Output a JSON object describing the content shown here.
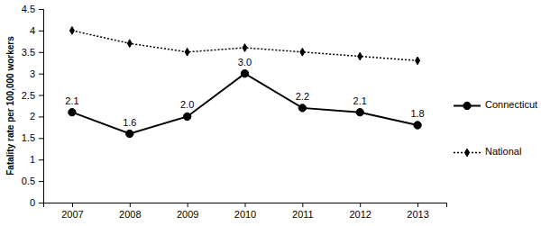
{
  "chart_data": {
    "type": "line",
    "y_label": "Fatality rate per 100,000 workers",
    "categories": [
      "2007",
      "2008",
      "2009",
      "2010",
      "2011",
      "2012",
      "2013"
    ],
    "series": [
      {
        "name": "Connecticut",
        "color": "#000000",
        "marker": "circle",
        "line_style": "solid",
        "data_labels": true,
        "values": [
          2.1,
          1.6,
          2.0,
          3.0,
          2.2,
          2.1,
          1.8
        ],
        "value_labels": [
          "2.1",
          "1.6",
          "2.0",
          "3.0",
          "2.2",
          "2.1",
          "1.8"
        ]
      },
      {
        "name": "National",
        "color": "#000000",
        "marker": "diamond",
        "line_style": "dotted",
        "values": [
          4.0,
          3.7,
          3.5,
          3.6,
          3.5,
          3.4,
          3.3
        ]
      }
    ],
    "ylim": [
      0,
      4.5
    ],
    "yticks": [
      0,
      0.5,
      1,
      1.5,
      2,
      2.5,
      3,
      3.5,
      4,
      4.5
    ],
    "grid": false,
    "legend": "right"
  }
}
